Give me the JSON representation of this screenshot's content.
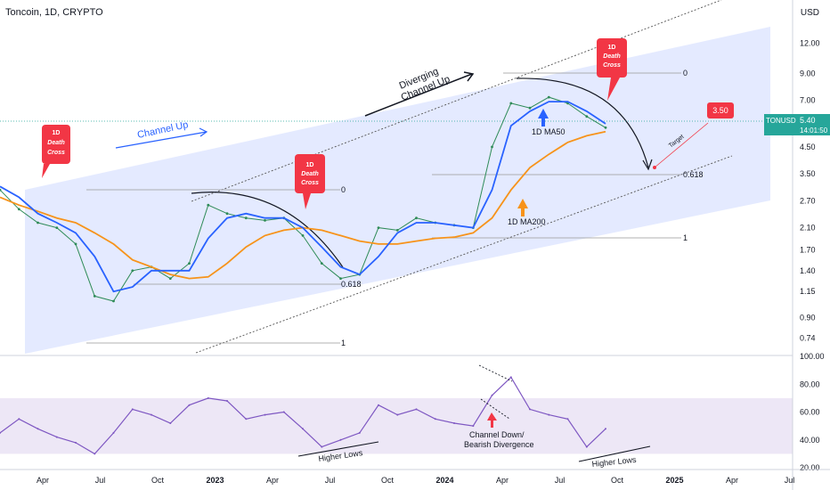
{
  "header": {
    "title": "Toncoin, 1D, CRYPTO",
    "currency": "USD"
  },
  "colors": {
    "price": "#2e8b57",
    "ma50": "#2962ff",
    "ma200": "#f7931a",
    "rsi": "#7e57c2",
    "rsi_ma": "#f0c419",
    "band": "#dfe6ff",
    "label": "#f23645",
    "axis_text": "#131722"
  },
  "price_axis": {
    "ticks": [
      "12.00",
      "9.00",
      "7.00",
      "5.40",
      "4.50",
      "3.50",
      "2.70",
      "2.10",
      "1.70",
      "1.40",
      "1.15",
      "0.90",
      "0.74"
    ],
    "scale": "log"
  },
  "rsi_axis": {
    "ticks": [
      "100.00",
      "80.00",
      "60.00",
      "40.00",
      "20.00"
    ]
  },
  "time_axis": {
    "ticks": [
      "Apr",
      "Jul",
      "Oct",
      "2023",
      "Apr",
      "Jul",
      "Oct",
      "2024",
      "Apr",
      "Jul",
      "Oct",
      "2025",
      "Apr",
      "Jul"
    ]
  },
  "last_price": {
    "symbol": "TONUSD",
    "value": "5.40",
    "countdown": "14:01:50"
  },
  "target": {
    "value": "3.50",
    "caption": "Target"
  },
  "annotations": {
    "death_cross": [
      "1D",
      "Death",
      "Cross"
    ],
    "channel_up": "Channel Up",
    "diverging": [
      "Diverging",
      "Channel Up"
    ],
    "ma50": "1D MA50",
    "ma200": "1D MA200",
    "fib": [
      "0",
      "0.618",
      "1"
    ],
    "higher_lows": "Higher Lows",
    "channel_down": [
      "Channel Down/",
      "Bearish Divergence"
    ]
  },
  "chart_data": {
    "type": "line",
    "title": "Toncoin, 1D, CRYPTO",
    "x": [
      "2022-01",
      "2022-02",
      "2022-03",
      "2022-04",
      "2022-05",
      "2022-06",
      "2022-07",
      "2022-08",
      "2022-09",
      "2022-10",
      "2022-11",
      "2022-12",
      "2023-01",
      "2023-02",
      "2023-03",
      "2023-04",
      "2023-05",
      "2023-06",
      "2023-07",
      "2023-08",
      "2023-09",
      "2023-10",
      "2023-11",
      "2023-12",
      "2024-01",
      "2024-02",
      "2024-03",
      "2024-04",
      "2024-05",
      "2024-06",
      "2024-07",
      "2024-08",
      "2024-09"
    ],
    "series": [
      {
        "name": "TONUSD",
        "values": [
          3.0,
          2.5,
          2.2,
          2.1,
          1.8,
          1.1,
          1.05,
          1.4,
          1.45,
          1.3,
          1.5,
          2.6,
          2.4,
          2.3,
          2.25,
          2.3,
          1.95,
          1.5,
          1.3,
          1.35,
          2.1,
          2.05,
          2.3,
          2.2,
          2.15,
          2.1,
          4.5,
          6.8,
          6.5,
          7.2,
          6.8,
          6.0,
          5.4
        ]
      },
      {
        "name": "1D MA50",
        "values": [
          3.1,
          2.8,
          2.4,
          2.2,
          2.0,
          1.6,
          1.15,
          1.2,
          1.4,
          1.4,
          1.4,
          1.9,
          2.3,
          2.4,
          2.3,
          2.3,
          2.1,
          1.75,
          1.45,
          1.35,
          1.6,
          2.0,
          2.2,
          2.2,
          2.15,
          2.1,
          3.0,
          5.5,
          6.3,
          6.9,
          6.9,
          6.3,
          5.6
        ]
      },
      {
        "name": "1D MA200",
        "values": [
          2.8,
          2.6,
          2.45,
          2.3,
          2.2,
          2.0,
          1.8,
          1.55,
          1.45,
          1.35,
          1.3,
          1.32,
          1.5,
          1.75,
          1.95,
          2.05,
          2.1,
          2.05,
          1.95,
          1.85,
          1.8,
          1.8,
          1.85,
          1.9,
          1.92,
          2.0,
          2.3,
          3.0,
          3.7,
          4.2,
          4.7,
          5.0,
          5.2
        ]
      }
    ],
    "rsi": {
      "ylim": [
        20,
        100
      ],
      "band": [
        30,
        70
      ],
      "values": [
        45,
        55,
        48,
        42,
        38,
        30,
        45,
        62,
        58,
        52,
        65,
        70,
        68,
        55,
        58,
        60,
        48,
        35,
        40,
        45,
        65,
        58,
        62,
        55,
        52,
        50,
        72,
        85,
        62,
        58,
        55,
        35,
        48
      ]
    },
    "ylim": [
      0.65,
      14
    ],
    "legend": "none",
    "grid": false
  }
}
